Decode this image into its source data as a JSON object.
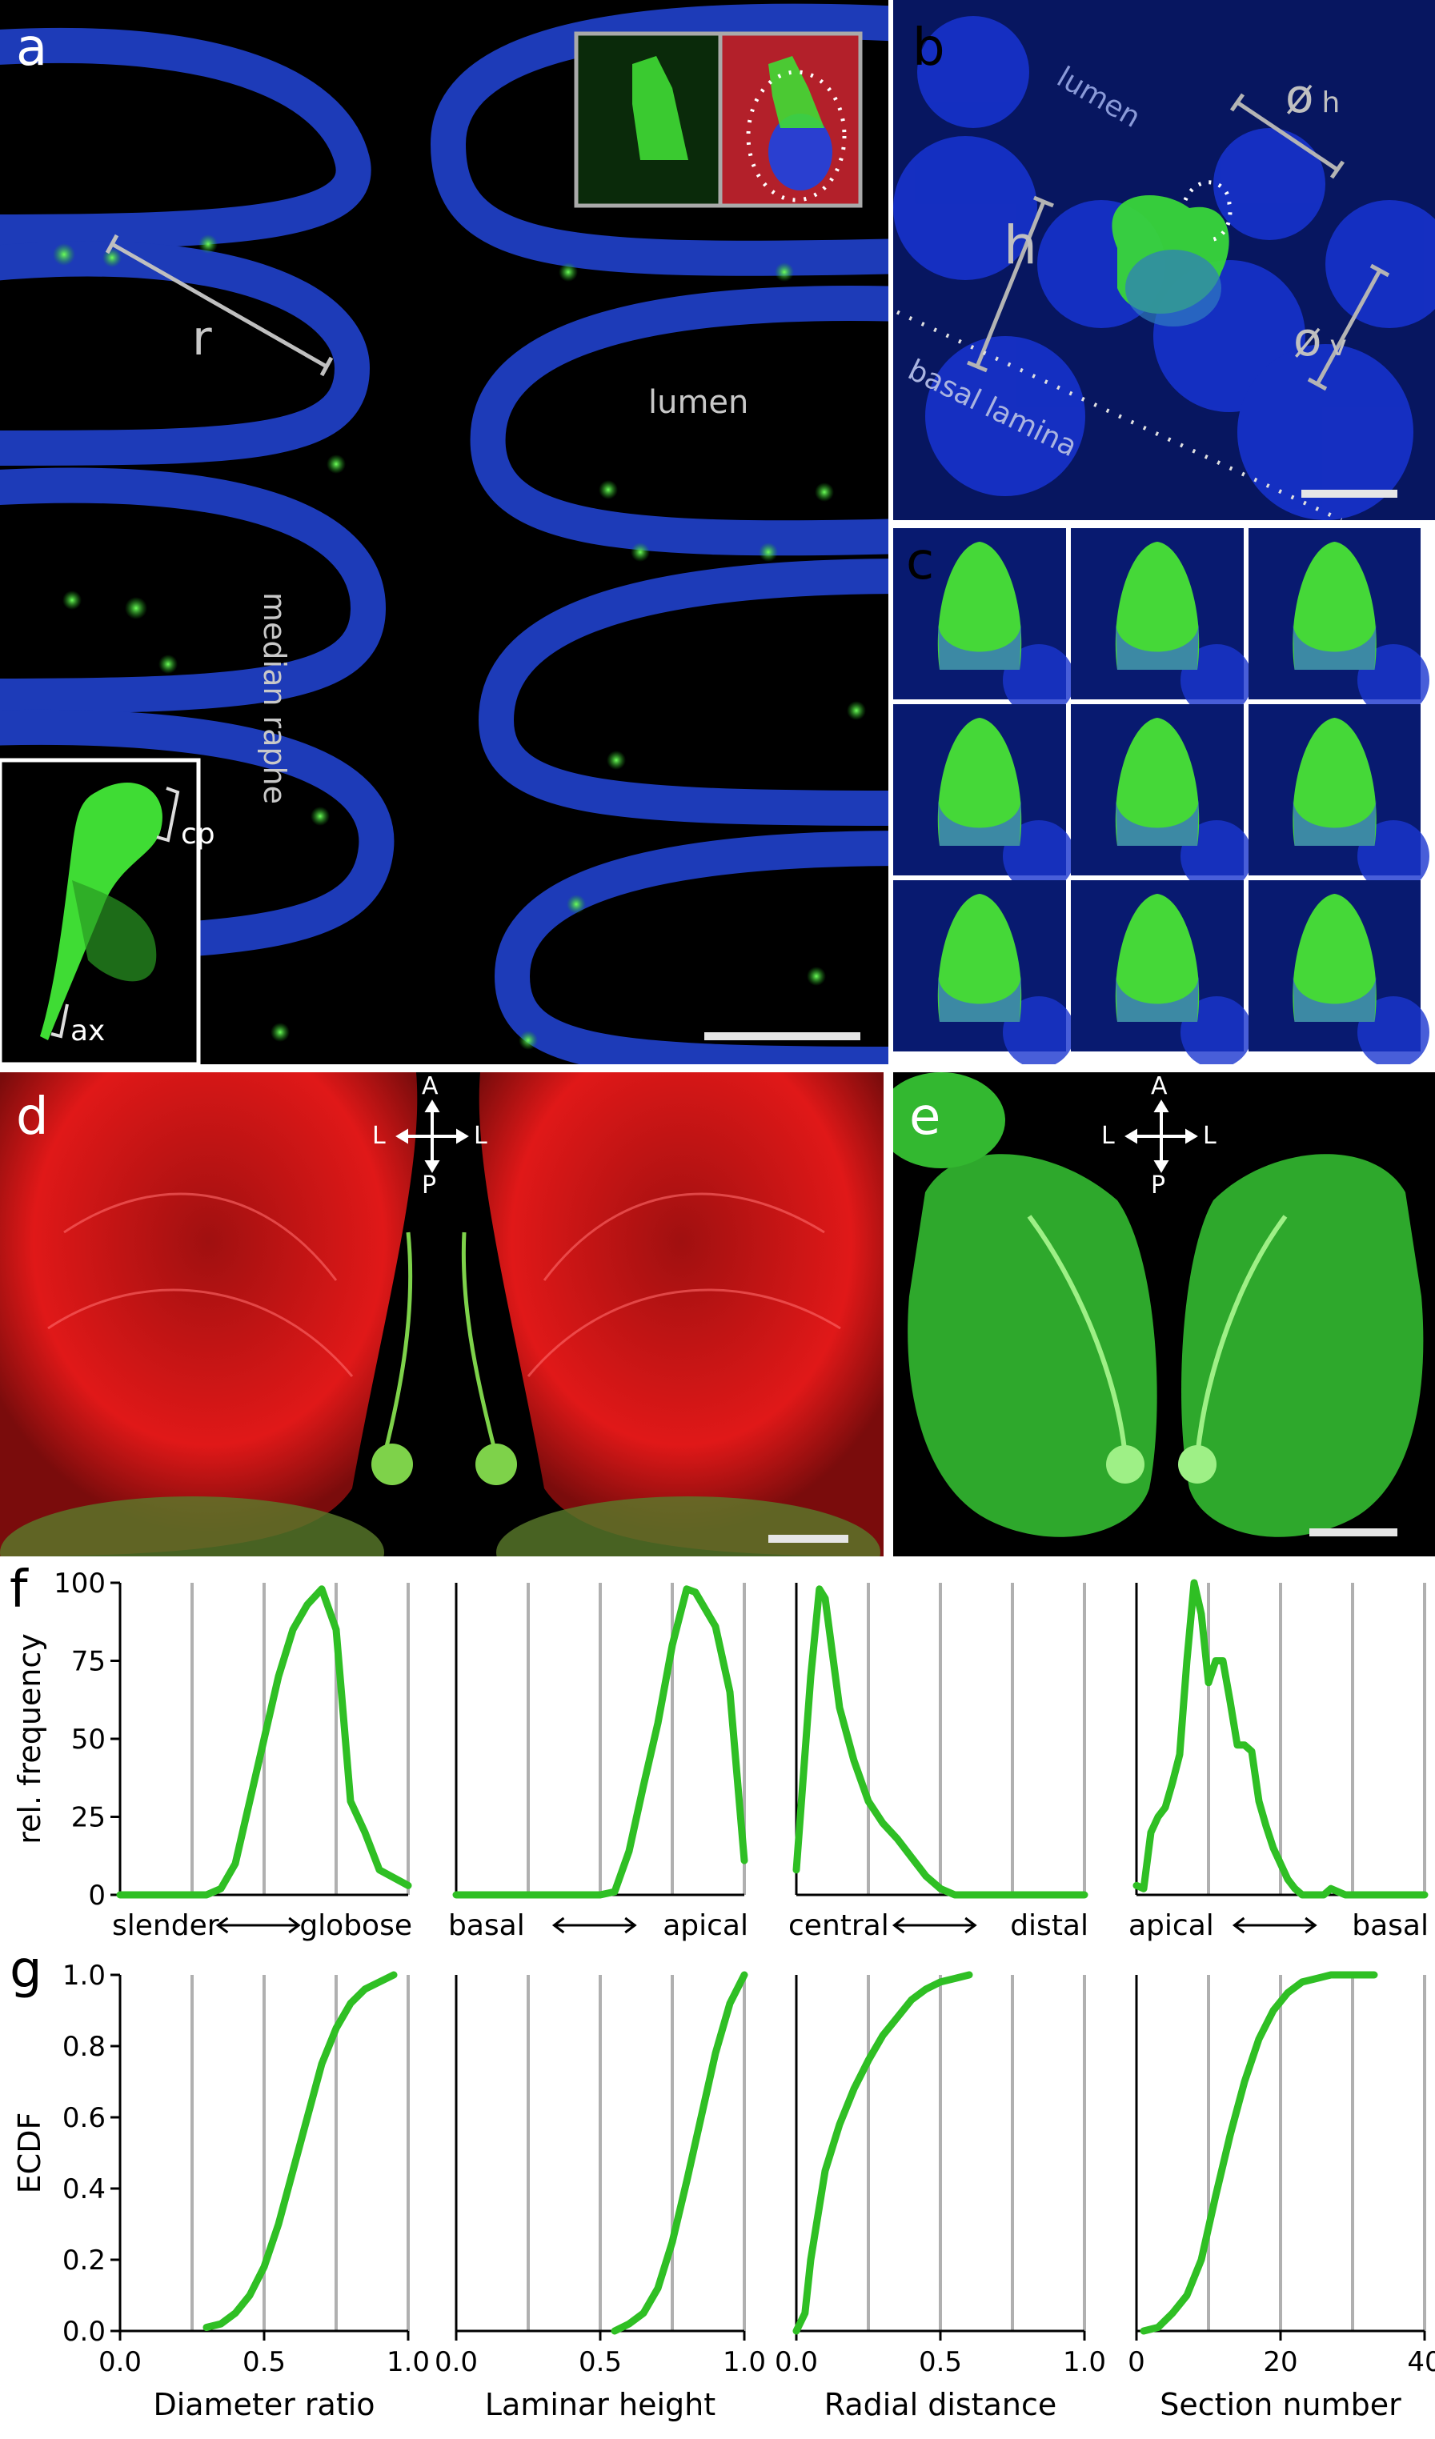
{
  "panels": {
    "a": {
      "label": "a",
      "r": "r",
      "lumen": "lumen",
      "median_raphe": "median raphe",
      "cp": "cp",
      "ax": "ax"
    },
    "b": {
      "label": "b",
      "lumen": "lumen",
      "h": "h",
      "dh": "ø",
      "dh_sub": "h",
      "dv": "ø",
      "dv_sub": "v",
      "basal_lamina": "basal lamina"
    },
    "c": {
      "label": "c"
    },
    "d": {
      "label": "d",
      "compass": {
        "A": "A",
        "L1": "L",
        "L2": "L",
        "P": "P"
      }
    },
    "e": {
      "label": "e",
      "compass": {
        "A": "A",
        "L1": "L",
        "L2": "L",
        "P": "P"
      }
    },
    "f": {
      "label": "f"
    },
    "g": {
      "label": "g"
    }
  },
  "colors": {
    "line": "#2fbf24",
    "grid": "#b0b0b0",
    "nuclei": "#1a2fbf",
    "gfp": "#2fe02a",
    "red": "#e01818"
  },
  "chart_data": [
    {
      "type": "line",
      "ylabel": "rel. frequency",
      "ylim": [
        0,
        100
      ],
      "yticks": [
        "0",
        "25",
        "50",
        "75",
        "100"
      ],
      "xlim": [
        0,
        1
      ],
      "gridlines": [
        0.25,
        0.5,
        0.75,
        1.0
      ],
      "range_left": "slender",
      "range_right": "globose",
      "x": [
        0.0,
        0.1,
        0.2,
        0.3,
        0.35,
        0.4,
        0.45,
        0.5,
        0.55,
        0.6,
        0.65,
        0.7,
        0.75,
        0.8,
        0.85,
        0.9,
        1.0
      ],
      "y": [
        0,
        0,
        0,
        0,
        2,
        10,
        30,
        50,
        70,
        85,
        93,
        98,
        85,
        30,
        20,
        8,
        3
      ]
    },
    {
      "type": "line",
      "ylim": [
        0,
        100
      ],
      "xlim": [
        0,
        1
      ],
      "gridlines": [
        0.25,
        0.5,
        0.75,
        1.0
      ],
      "range_left": "basal",
      "range_right": "apical",
      "x": [
        0.0,
        0.2,
        0.4,
        0.45,
        0.5,
        0.55,
        0.6,
        0.65,
        0.7,
        0.75,
        0.8,
        0.83,
        0.9,
        0.95,
        1.0
      ],
      "y": [
        0,
        0,
        0,
        0,
        0,
        1,
        14,
        35,
        55,
        80,
        98,
        97,
        86,
        65,
        11
      ]
    },
    {
      "type": "line",
      "ylim": [
        0,
        100
      ],
      "xlim": [
        0,
        1
      ],
      "gridlines": [
        0.25,
        0.5,
        0.75,
        1.0
      ],
      "range_left": "central",
      "range_right": "distal",
      "x": [
        0.0,
        0.05,
        0.08,
        0.1,
        0.15,
        0.2,
        0.25,
        0.3,
        0.35,
        0.4,
        0.45,
        0.5,
        0.55,
        0.6,
        0.7,
        0.8,
        0.9,
        1.0
      ],
      "y": [
        8,
        70,
        98,
        95,
        60,
        43,
        30,
        23,
        18,
        12,
        6,
        2,
        0,
        0,
        0,
        0,
        0,
        0
      ]
    },
    {
      "type": "line",
      "ylim": [
        0,
        100
      ],
      "xlim": [
        0,
        40
      ],
      "gridlines": [
        10,
        20,
        30,
        40
      ],
      "range_left": "apical",
      "range_right": "basal",
      "x": [
        0,
        1,
        2,
        3,
        4,
        5,
        6,
        7,
        8,
        9,
        10,
        11,
        12,
        13,
        14,
        15,
        16,
        17,
        18,
        19,
        20,
        21,
        22,
        23,
        24,
        25,
        26,
        27,
        28,
        29,
        30,
        31,
        32,
        33,
        34,
        35,
        36,
        37,
        38,
        39,
        40
      ],
      "y": [
        3,
        2,
        20,
        25,
        28,
        36,
        45,
        75,
        100,
        90,
        68,
        75,
        75,
        62,
        48,
        48,
        46,
        30,
        22,
        15,
        10,
        5,
        2,
        0,
        0,
        0,
        0,
        2,
        1,
        0,
        0,
        0,
        0,
        0,
        0,
        0,
        0,
        0,
        0,
        0,
        0
      ]
    },
    {
      "type": "line",
      "ylabel": "ECDF",
      "ylim": [
        0,
        1
      ],
      "yticks": [
        "0.0",
        "0.2",
        "0.4",
        "0.6",
        "0.8",
        "1.0"
      ],
      "xlim": [
        0,
        1
      ],
      "xticks": [
        "0.0",
        "0.5",
        "1.0"
      ],
      "gridlines": [
        0.25,
        0.5,
        0.75,
        1.0
      ],
      "xlabel": "Diameter ratio",
      "x": [
        0.3,
        0.35,
        0.4,
        0.45,
        0.5,
        0.55,
        0.6,
        0.65,
        0.7,
        0.75,
        0.8,
        0.85,
        0.9,
        0.95
      ],
      "y": [
        0.01,
        0.02,
        0.05,
        0.1,
        0.18,
        0.3,
        0.45,
        0.6,
        0.75,
        0.85,
        0.92,
        0.96,
        0.98,
        1.0
      ]
    },
    {
      "type": "line",
      "ylim": [
        0,
        1
      ],
      "xlim": [
        0,
        1
      ],
      "xticks": [
        "0.0",
        "0.5",
        "1.0"
      ],
      "gridlines": [
        0.25,
        0.5,
        0.75,
        1.0
      ],
      "xlabel": "Laminar height",
      "x": [
        0.55,
        0.6,
        0.65,
        0.7,
        0.75,
        0.8,
        0.85,
        0.9,
        0.95,
        1.0
      ],
      "y": [
        0.0,
        0.02,
        0.05,
        0.12,
        0.25,
        0.42,
        0.6,
        0.78,
        0.92,
        1.0
      ]
    },
    {
      "type": "line",
      "ylim": [
        0,
        1
      ],
      "xlim": [
        0,
        1
      ],
      "xticks": [
        "0.0",
        "0.5",
        "1.0"
      ],
      "gridlines": [
        0.25,
        0.5,
        0.75,
        1.0
      ],
      "xlabel": "Radial distance",
      "x": [
        0.0,
        0.03,
        0.05,
        0.08,
        0.1,
        0.15,
        0.2,
        0.25,
        0.3,
        0.35,
        0.4,
        0.45,
        0.5,
        0.55,
        0.6
      ],
      "y": [
        0.0,
        0.05,
        0.2,
        0.35,
        0.45,
        0.58,
        0.68,
        0.76,
        0.83,
        0.88,
        0.93,
        0.96,
        0.98,
        0.99,
        1.0
      ]
    },
    {
      "type": "line",
      "ylim": [
        0,
        1
      ],
      "xlim": [
        0,
        40
      ],
      "xticks": [
        "0",
        "20",
        "40"
      ],
      "gridlines": [
        10,
        20,
        30,
        40
      ],
      "xlabel": "Section number",
      "x": [
        1,
        3,
        5,
        7,
        9,
        11,
        13,
        15,
        17,
        19,
        21,
        23,
        25,
        27,
        29,
        31,
        33
      ],
      "y": [
        0.0,
        0.01,
        0.05,
        0.1,
        0.2,
        0.38,
        0.55,
        0.7,
        0.82,
        0.9,
        0.95,
        0.98,
        0.99,
        1.0,
        1.0,
        1.0,
        1.0
      ]
    }
  ]
}
